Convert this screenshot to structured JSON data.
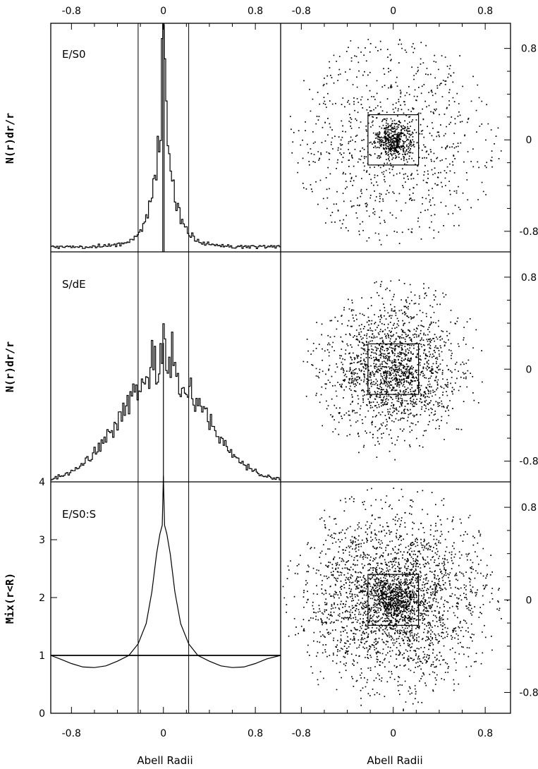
{
  "chart_data": {
    "type": "figure",
    "x_tick_labels": [
      "-0.8",
      "0",
      "0.8"
    ],
    "x_tick_values": [
      -0.8,
      0,
      0.8
    ],
    "x_axis_title": "Abell Radii",
    "xlim": [
      -0.98,
      1.02
    ],
    "scatter_ylim": [
      -0.98,
      1.02
    ],
    "scatter_y_tick_labels": [
      "0.8",
      "0",
      "-0.8"
    ],
    "scatter_y_tick_values": [
      0.8,
      0,
      -0.8
    ],
    "box_half_width": 0.22,
    "vertical_lines_x": [
      -0.22,
      0.22
    ],
    "panels": [
      {
        "type": "histogram",
        "label": "E/S0",
        "ylabel": "N(r)dr/r",
        "ylim": [
          0,
          1
        ],
        "profile": {
          "core_scale": 0.045,
          "halo_scale": 0.1,
          "halo_amp": 0.55,
          "base": 0.02,
          "core_peak": 1.05
        }
      },
      {
        "type": "histogram",
        "label": "S/dE",
        "ylabel": "N(r)dr/r",
        "ylim": [
          0,
          1
        ],
        "profile": {
          "gauss_sigma": 0.36,
          "amp": 0.5,
          "spike": 0.1,
          "spike_width": 0.012
        }
      },
      {
        "type": "line",
        "label": "E/S0:S",
        "ylabel": "Mix(r<R)",
        "ylim": [
          0,
          4
        ],
        "y_tick_labels": [
          "4",
          "3",
          "2",
          "1",
          "0"
        ],
        "y_tick_values": [
          4,
          3,
          2,
          1,
          0
        ],
        "reference_line_y": 1,
        "curve": {
          "x": [
            -0.98,
            -0.9,
            -0.8,
            -0.7,
            -0.6,
            -0.5,
            -0.4,
            -0.3,
            -0.22,
            -0.15,
            -0.1,
            -0.06,
            -0.03,
            -0.01,
            0,
            0.01,
            0.03,
            0.06,
            0.1,
            0.15,
            0.22,
            0.3,
            0.4,
            0.5,
            0.6,
            0.7,
            0.8,
            0.9,
            1.02
          ],
          "y": [
            1.0,
            0.94,
            0.86,
            0.8,
            0.79,
            0.82,
            0.9,
            1.0,
            1.2,
            1.55,
            2.1,
            2.75,
            3.1,
            3.25,
            4.1,
            3.25,
            3.1,
            2.75,
            2.1,
            1.55,
            1.2,
            1.0,
            0.9,
            0.82,
            0.79,
            0.8,
            0.86,
            0.94,
            1.0
          ]
        }
      }
    ],
    "scatters": [
      {
        "n": 1300,
        "core_frac": 0.28,
        "core_sigma": 0.08,
        "halo_sigma": 0.5,
        "radius": 0.95,
        "seed": 11
      },
      {
        "n": 1800,
        "core_frac": 0.05,
        "core_sigma": 0.1,
        "halo_sigma": 0.3,
        "radius": 0.8,
        "seed": 23
      },
      {
        "n": 3000,
        "core_frac": 0.15,
        "core_sigma": 0.1,
        "halo_sigma": 0.38,
        "radius": 0.99,
        "seed": 37
      }
    ]
  }
}
